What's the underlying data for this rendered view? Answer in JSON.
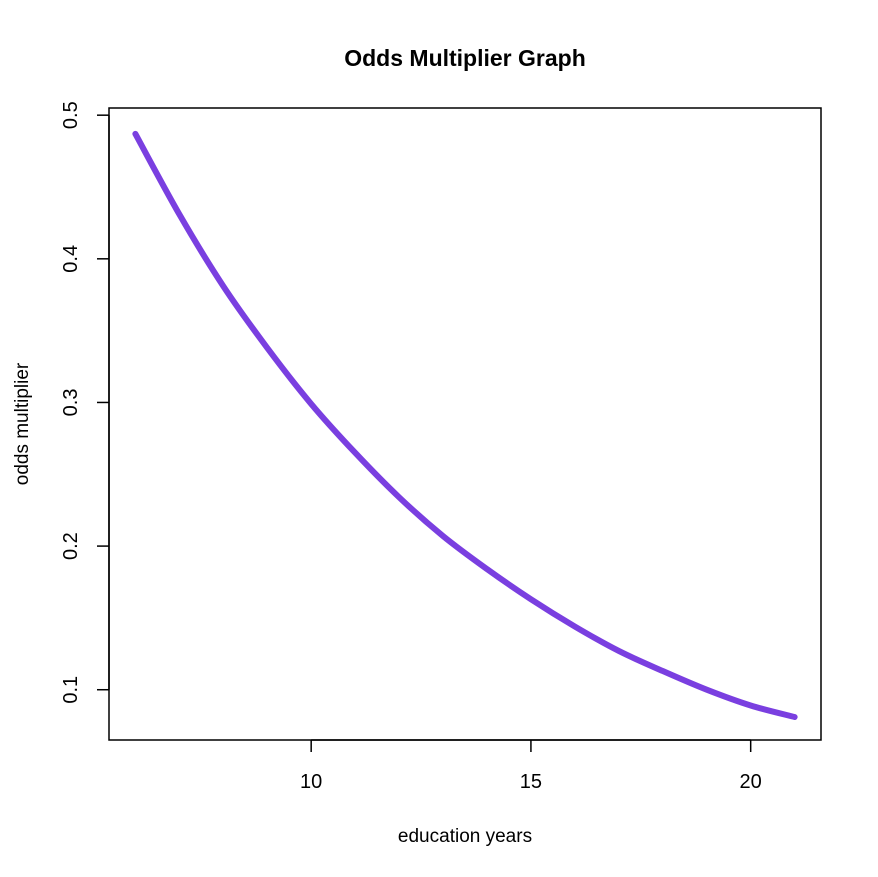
{
  "chart_data": {
    "type": "line",
    "title": "Odds Multiplier Graph",
    "xlabel": "education years",
    "ylabel": "odds multiplier",
    "xlim": [
      5.4,
      21.6
    ],
    "ylim": [
      0.065,
      0.505
    ],
    "x_ticks": [
      10,
      15,
      20
    ],
    "y_ticks": [
      0.1,
      0.2,
      0.3,
      0.4,
      0.5
    ],
    "x_tick_labels": [
      "10",
      "15",
      "20"
    ],
    "y_tick_labels": [
      "0.1",
      "0.2",
      "0.3",
      "0.4",
      "0.5"
    ],
    "grid": false,
    "legend": "none",
    "line_color": "#7a3fe0",
    "series": [
      {
        "x": [
          6,
          7,
          8,
          9,
          10,
          11,
          12,
          13,
          14,
          15,
          16,
          17,
          18,
          19,
          20,
          21
        ],
        "y": [
          0.487,
          0.431,
          0.381,
          0.338,
          0.299,
          0.265,
          0.234,
          0.207,
          0.184,
          0.163,
          0.144,
          0.127,
          0.113,
          0.1,
          0.089,
          0.081
        ]
      }
    ]
  }
}
